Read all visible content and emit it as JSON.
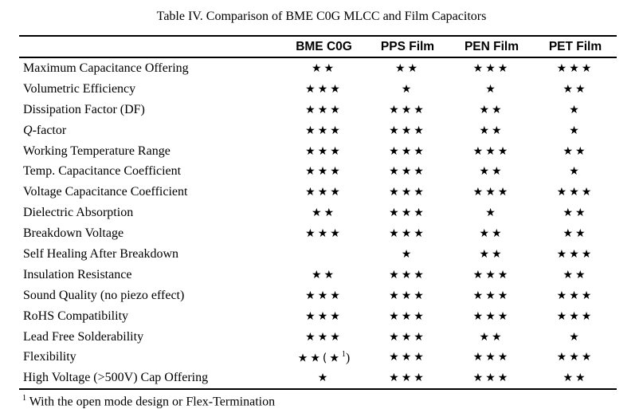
{
  "title": "Table IV. Comparison of BME C0G MLCC and Film Capacitors",
  "columns": [
    "",
    "BME C0G",
    "PPS Film",
    "PEN Film",
    "PET Film"
  ],
  "rows": [
    {
      "label": "Maximum Capacitance Offering",
      "values": [
        "★★",
        "★★",
        "★★★",
        "★★★"
      ]
    },
    {
      "label": "Volumetric Efficiency",
      "values": [
        "★★★",
        "★",
        "★",
        "★★"
      ]
    },
    {
      "label": "Dissipation Factor (DF)",
      "values": [
        "★★★",
        "★★★",
        "★★",
        "★"
      ]
    },
    {
      "label_italic": "Q",
      "label": "-factor",
      "values": [
        "★★★",
        "★★★",
        "★★",
        "★"
      ]
    },
    {
      "label": "Working Temperature Range",
      "values": [
        "★★★",
        "★★★",
        "★★★",
        "★★"
      ]
    },
    {
      "label": "Temp. Capacitance Coefficient",
      "values": [
        "★★★",
        "★★★",
        "★★",
        "★"
      ]
    },
    {
      "label": "Voltage Capacitance Coefficient",
      "values": [
        "★★★",
        "★★★",
        "★★★",
        "★★★"
      ]
    },
    {
      "label": "Dielectric Absorption",
      "values": [
        "★★",
        "★★★",
        "★",
        "★★"
      ]
    },
    {
      "label": "Breakdown Voltage",
      "values": [
        "★★★",
        "★★★",
        "★★",
        "★★"
      ]
    },
    {
      "label": "Self Healing After Breakdown",
      "values": [
        "",
        "★",
        "★★",
        "★★★"
      ]
    },
    {
      "label": "Insulation Resistance",
      "values": [
        "★★",
        "★★★",
        "★★★",
        "★★"
      ]
    },
    {
      "label": "Sound Quality (no piezo effect)",
      "values": [
        "★★★",
        "★★★",
        "★★★",
        "★★★"
      ]
    },
    {
      "label": "RoHS Compatibility",
      "values": [
        "★★★",
        "★★★",
        "★★★",
        "★★★"
      ]
    },
    {
      "label": "Lead Free Solderability",
      "values": [
        "★★★",
        "★★★",
        "★★",
        "★"
      ]
    },
    {
      "label": "Flexibility",
      "values": [
        "★★(★",
        "★★★",
        "★★★",
        "★★★"
      ],
      "note_mark": "1",
      "note_close": ")"
    },
    {
      "label": "High Voltage (>500V) Cap Offering",
      "values": [
        "★",
        "★★★",
        "★★★",
        "★★"
      ]
    }
  ],
  "footnote": {
    "mark": "1",
    "text": " With the open mode design or Flex-Termination"
  }
}
